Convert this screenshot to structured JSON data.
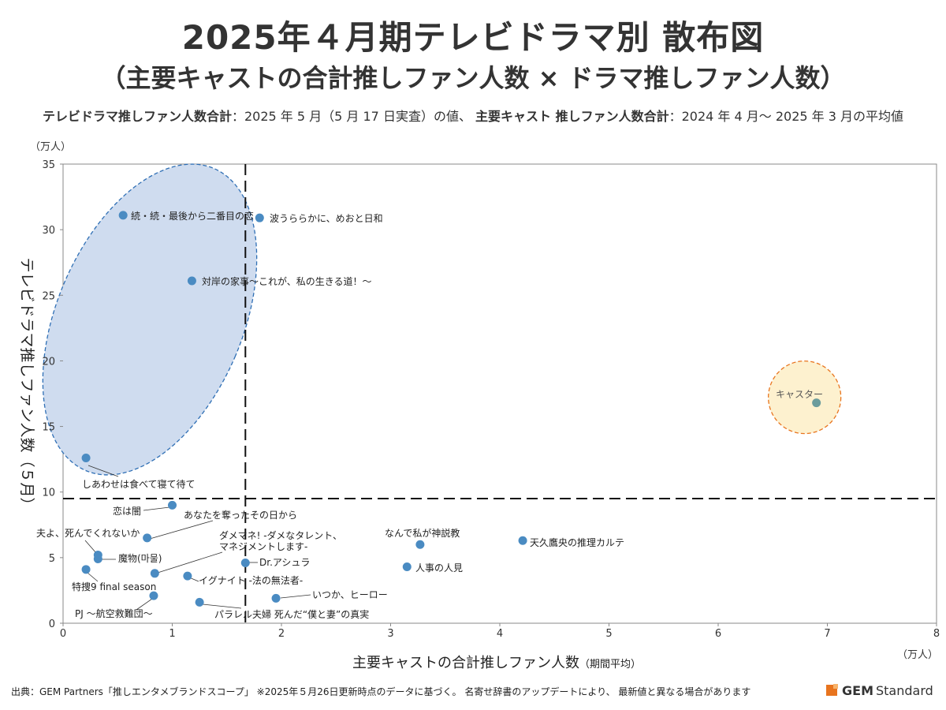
{
  "header": {
    "title": "2025年４月期テレビドラマ別 散布図",
    "subtitle": "（主要キャストの合計推しファン人数 × ドラマ推しファン人数）",
    "note_bold1": "テレビドラマ推しファン人数合計",
    "note_text1": "：2025 年 5 月（5 月 17 日実査）の値、",
    "note_bold2": "主要キャスト 推しファン人数合計",
    "note_text2": "：2024 年 4 月～ 2025 年 3 月の平均値"
  },
  "footer": {
    "source": "出典：GEM Partners「推しエンタメブランドスコープ」 ※2025年５月26日更新時点のデータに基づく。 名寄せ辞書のアップデートにより、 最新値と異なる場合があります",
    "brand_gem": "GEM",
    "brand_standard": "Standard"
  },
  "chart_data": {
    "type": "scatter",
    "xlabel": "主要キャストの合計推しファン人数",
    "xlabel_suffix": "（期間平均）",
    "ylabel": "テレビドラマ推しファン人数（５月）",
    "xunit": "（万人）",
    "yunit": "（万人）",
    "xlim": [
      0,
      8
    ],
    "ylim": [
      0,
      35
    ],
    "xticks": [
      0,
      1,
      2,
      3,
      4,
      5,
      6,
      7,
      8
    ],
    "yticks": [
      0,
      5,
      10,
      15,
      20,
      25,
      30,
      35
    ],
    "grid": false,
    "ref_x": 1.67,
    "ref_y": 9.5,
    "point_color": "#4a8bc2",
    "ellipse_fill": "#cfdcef",
    "ellipse_stroke": "#2f6fb5",
    "circle_fill": "#fdf1cf",
    "circle_stroke": "#e8741e",
    "highlight_label": "キャスター",
    "points": [
      {
        "label": "続・続・最後から二番目の恋",
        "x": 0.55,
        "y": 31.1
      },
      {
        "label": "波うららかに、めおと日和",
        "x": 1.8,
        "y": 30.9
      },
      {
        "label": "対岸の家事～これが、私の生きる道！～",
        "x": 1.18,
        "y": 26.1
      },
      {
        "label": "しあわせは食べて寝て待て",
        "x": 0.21,
        "y": 12.6
      },
      {
        "label": "キャスター",
        "x": 6.9,
        "y": 16.8
      },
      {
        "label": "恋は闇",
        "x": 1.0,
        "y": 9.0
      },
      {
        "label": "あなたを奪ったその日から",
        "x": 0.77,
        "y": 6.5
      },
      {
        "label": "夫よ、死んでくれないか",
        "x": 0.32,
        "y": 5.2
      },
      {
        "label": "魔物(마물)",
        "x": 0.32,
        "y": 4.9
      },
      {
        "label": "特捜9 final season",
        "x": 0.21,
        "y": 4.1
      },
      {
        "label": "ダメマネ! -ダメなタレント、マネジメントします-",
        "x": 0.84,
        "y": 3.8
      },
      {
        "label": "Dr.アシュラ",
        "x": 1.67,
        "y": 4.6
      },
      {
        "label": "イグナイト -法の無法者-",
        "x": 1.14,
        "y": 3.6
      },
      {
        "label": "なんで私が神説教",
        "x": 3.27,
        "y": 6.0
      },
      {
        "label": "人事の人見",
        "x": 3.15,
        "y": 4.3
      },
      {
        "label": "天久鷹央の推理カルテ",
        "x": 4.21,
        "y": 6.3
      },
      {
        "label": "いつか、ヒーロー",
        "x": 1.95,
        "y": 1.9
      },
      {
        "label": "PJ ～航空救難団～",
        "x": 0.83,
        "y": 2.1
      },
      {
        "label": "パラレル夫婦 死んだ“僕と妻”の真実",
        "x": 1.25,
        "y": 1.6
      }
    ]
  }
}
